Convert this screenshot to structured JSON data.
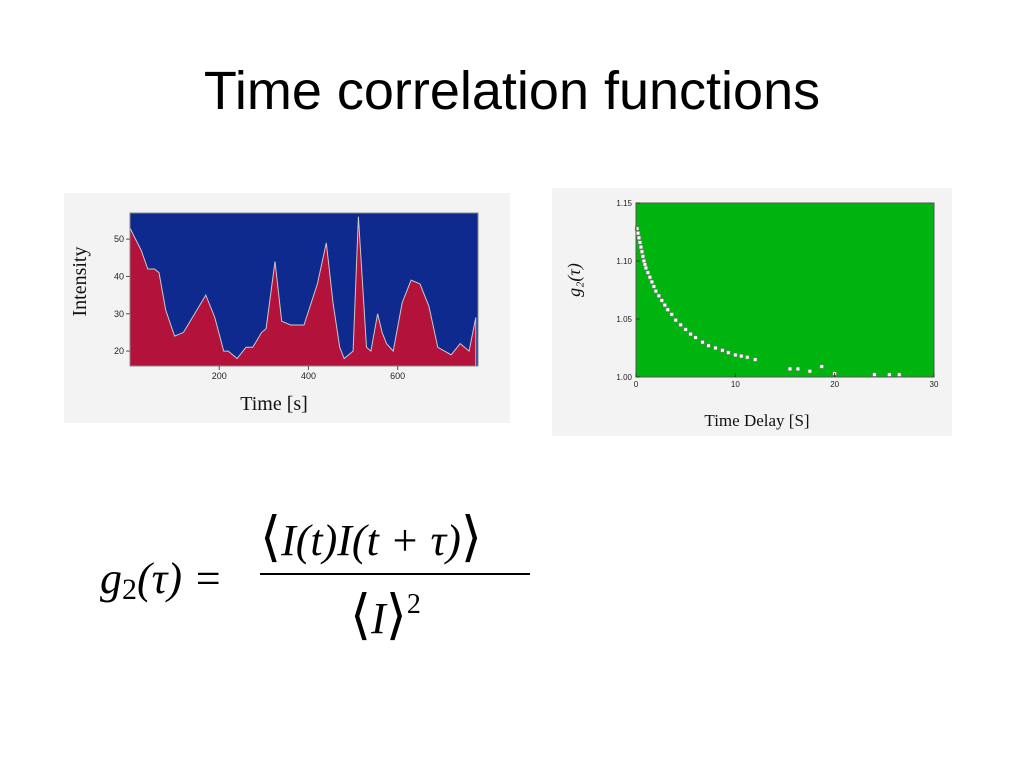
{
  "title": "Time correlation functions",
  "colors": {
    "left_background": "#0f2a8e",
    "left_fill": "#b3123a",
    "right_background": "#00b40f",
    "right_points": "#ffffff"
  },
  "formula": {
    "lhs_g": "g",
    "lhs_sub": "2",
    "lhs_rest": "(τ) =",
    "numerator": "I(t)I(t + τ)",
    "denominator": "I",
    "denominator_power": "2",
    "left_angle": "⟨",
    "right_angle": "⟩"
  },
  "chart_data": [
    {
      "type": "area",
      "xlabel": "Time [s]",
      "ylabel": "Intensity",
      "xlim": [
        0,
        780
      ],
      "ylim": [
        16,
        57
      ],
      "x_ticks": [
        200,
        400,
        600
      ],
      "y_ticks": [
        20,
        30,
        40,
        50
      ],
      "grid": false,
      "x": [
        0,
        8,
        25,
        40,
        55,
        65,
        80,
        100,
        120,
        150,
        170,
        190,
        210,
        220,
        240,
        260,
        275,
        285,
        295,
        305,
        325,
        340,
        360,
        370,
        390,
        420,
        440,
        455,
        470,
        480,
        500,
        512,
        530,
        540,
        555,
        565,
        575,
        590,
        610,
        630,
        650,
        670,
        690,
        720,
        740,
        760,
        775
      ],
      "values": [
        53,
        51,
        47,
        42,
        42,
        41,
        31,
        24,
        25,
        31,
        35,
        29,
        20,
        20,
        18,
        21,
        21,
        23,
        25,
        26,
        44,
        28,
        27,
        27,
        27,
        38,
        49,
        33,
        21,
        18,
        20,
        56,
        21,
        20,
        30,
        25,
        22,
        20,
        33,
        39,
        38,
        32,
        21,
        19,
        22,
        20,
        29
      ]
    },
    {
      "type": "scatter",
      "xlabel": "Time Delay [S]",
      "ylabel": "g₂(τ)",
      "xlim": [
        0,
        30
      ],
      "ylim": [
        1.0,
        1.15
      ],
      "x_ticks": [
        0,
        10,
        20,
        30
      ],
      "y_ticks": [
        1.0,
        1.05,
        1.1,
        1.15
      ],
      "x_tick_labels": [
        "0",
        "10",
        "20",
        "30"
      ],
      "y_tick_labels": [
        "1.00",
        "1.05",
        "1.10",
        "1.15"
      ],
      "grid": false,
      "x": [
        0.1,
        0.2,
        0.3,
        0.4,
        0.5,
        0.6,
        0.7,
        0.8,
        0.9,
        1.0,
        1.2,
        1.4,
        1.6,
        1.8,
        2.0,
        2.3,
        2.6,
        2.9,
        3.2,
        3.6,
        4.0,
        4.5,
        5.0,
        5.5,
        6.0,
        6.7,
        7.3,
        8.0,
        8.7,
        9.3,
        10.0,
        10.6,
        11.2,
        12.0,
        15.5,
        16.3,
        17.5,
        18.7,
        20.0,
        24.0,
        25.5,
        26.5
      ],
      "values": [
        1.128,
        1.124,
        1.12,
        1.116,
        1.112,
        1.108,
        1.104,
        1.1,
        1.097,
        1.094,
        1.09,
        1.086,
        1.082,
        1.078,
        1.074,
        1.07,
        1.066,
        1.062,
        1.058,
        1.054,
        1.049,
        1.045,
        1.041,
        1.037,
        1.034,
        1.03,
        1.027,
        1.025,
        1.023,
        1.021,
        1.019,
        1.018,
        1.017,
        1.015,
        1.007,
        1.007,
        1.005,
        1.009,
        1.003,
        1.002,
        1.002,
        1.002
      ]
    }
  ]
}
